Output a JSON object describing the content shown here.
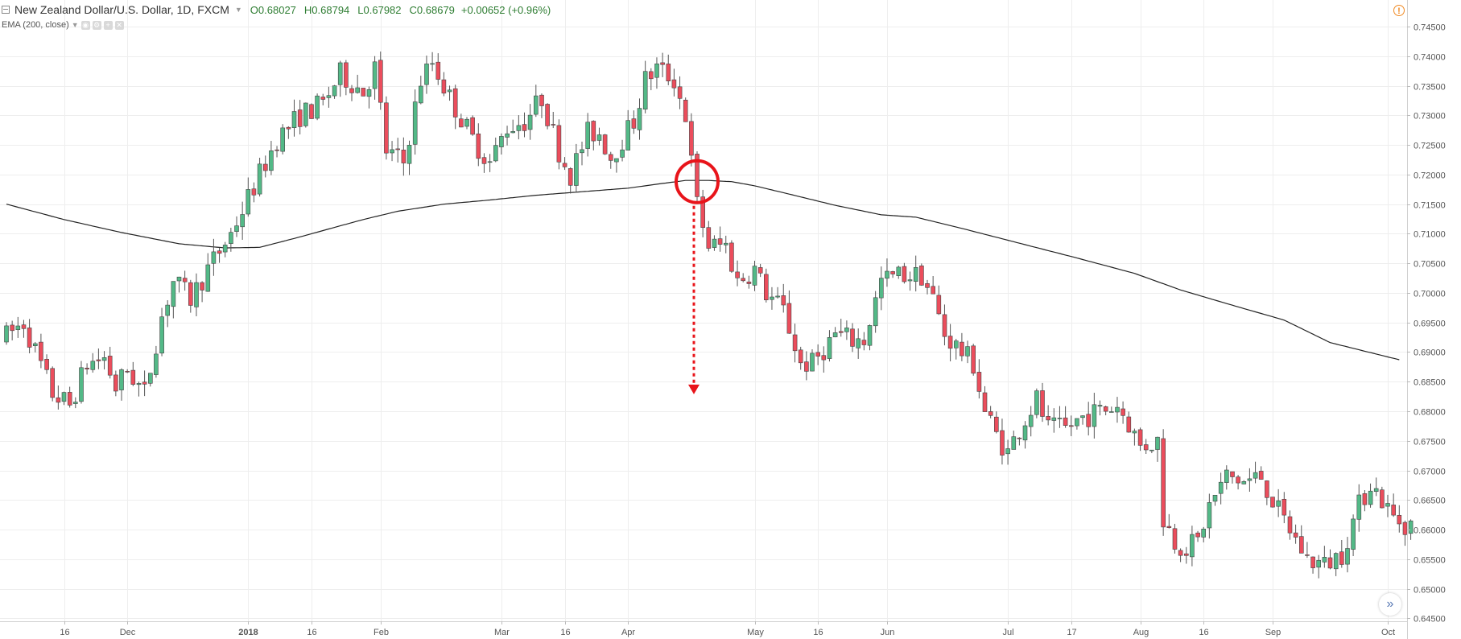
{
  "header": {
    "symbol_title": "New Zealand Dollar/U.S. Dollar, 1D, FXCM",
    "open": "O0.68027",
    "high": "H0.68794",
    "low": "L0.67982",
    "close": "C0.68679",
    "change": "+0.00652 (+0.96%)"
  },
  "study": {
    "label": "EMA (200, close)"
  },
  "icons": {
    "alert": "alert-circle-icon",
    "scroll": "double-chevron-right-icon",
    "collapse": "collapse-minus-icon"
  },
  "colors": {
    "up": "#53b987",
    "down": "#eb4d5c",
    "annotation": "#e8141a",
    "ema": "#222222"
  },
  "chart_data": {
    "type": "candlestick",
    "title": "New Zealand Dollar/U.S. Dollar, 1D, FXCM",
    "ylim": [
      0.6445,
      0.7495
    ],
    "y_ticks": [
      "0.74500",
      "0.74000",
      "0.73500",
      "0.73000",
      "0.72500",
      "0.72000",
      "0.71500",
      "0.71000",
      "0.70500",
      "0.70000",
      "0.69500",
      "0.69000",
      "0.68500",
      "0.68000",
      "0.67500",
      "0.67000",
      "0.66500",
      "0.66000",
      "0.65500",
      "0.65000",
      "0.64500"
    ],
    "x_labels": [
      {
        "label": "16",
        "bar": 10
      },
      {
        "label": "Dec",
        "bar": 21
      },
      {
        "label": "2018",
        "bar": 42
      },
      {
        "label": "16",
        "bar": 53
      },
      {
        "label": "Feb",
        "bar": 65
      },
      {
        "label": "Mar",
        "bar": 86
      },
      {
        "label": "16",
        "bar": 97
      },
      {
        "label": "Apr",
        "bar": 108
      },
      {
        "label": "May",
        "bar": 130
      },
      {
        "label": "16",
        "bar": 141
      },
      {
        "label": "Jun",
        "bar": 153
      },
      {
        "label": "Jul",
        "bar": 174
      },
      {
        "label": "17",
        "bar": 185
      },
      {
        "label": "Aug",
        "bar": 197
      },
      {
        "label": "16",
        "bar": 208
      },
      {
        "label": "Sep",
        "bar": 220
      },
      {
        "label": "Oct",
        "bar": 240
      }
    ],
    "ema_label": "EMA (200, close)",
    "ema_points": [
      {
        "bar": 0,
        "v": 0.715
      },
      {
        "bar": 10,
        "v": 0.7124
      },
      {
        "bar": 20,
        "v": 0.7102
      },
      {
        "bar": 30,
        "v": 0.7083
      },
      {
        "bar": 38,
        "v": 0.7076
      },
      {
        "bar": 44,
        "v": 0.7077
      },
      {
        "bar": 50,
        "v": 0.7092
      },
      {
        "bar": 56,
        "v": 0.7108
      },
      {
        "bar": 62,
        "v": 0.7124
      },
      {
        "bar": 68,
        "v": 0.7138
      },
      {
        "bar": 76,
        "v": 0.715
      },
      {
        "bar": 84,
        "v": 0.7157
      },
      {
        "bar": 92,
        "v": 0.7165
      },
      {
        "bar": 100,
        "v": 0.7171
      },
      {
        "bar": 108,
        "v": 0.7177
      },
      {
        "bar": 114,
        "v": 0.7185
      },
      {
        "bar": 118,
        "v": 0.719
      },
      {
        "bar": 122,
        "v": 0.719
      },
      {
        "bar": 126,
        "v": 0.7188
      },
      {
        "bar": 130,
        "v": 0.7181
      },
      {
        "bar": 136,
        "v": 0.7167
      },
      {
        "bar": 144,
        "v": 0.7148
      },
      {
        "bar": 152,
        "v": 0.7132
      },
      {
        "bar": 158,
        "v": 0.7128
      },
      {
        "bar": 166,
        "v": 0.7109
      },
      {
        "bar": 176,
        "v": 0.7084
      },
      {
        "bar": 186,
        "v": 0.7059
      },
      {
        "bar": 196,
        "v": 0.7033
      },
      {
        "bar": 204,
        "v": 0.7005
      },
      {
        "bar": 212,
        "v": 0.6982
      },
      {
        "bar": 222,
        "v": 0.6954
      },
      {
        "bar": 230,
        "v": 0.6916
      },
      {
        "bar": 242,
        "v": 0.6887
      }
    ],
    "price_path": [
      {
        "bar": 0,
        "v": 0.692
      },
      {
        "bar": 4,
        "v": 0.695
      },
      {
        "bar": 9,
        "v": 0.683
      },
      {
        "bar": 12,
        "v": 0.681
      },
      {
        "bar": 15,
        "v": 0.688
      },
      {
        "bar": 18,
        "v": 0.689
      },
      {
        "bar": 20,
        "v": 0.684
      },
      {
        "bar": 22,
        "v": 0.687
      },
      {
        "bar": 25,
        "v": 0.683
      },
      {
        "bar": 28,
        "v": 0.696
      },
      {
        "bar": 30,
        "v": 0.702
      },
      {
        "bar": 33,
        "v": 0.699
      },
      {
        "bar": 36,
        "v": 0.704
      },
      {
        "bar": 40,
        "v": 0.71
      },
      {
        "bar": 44,
        "v": 0.718
      },
      {
        "bar": 48,
        "v": 0.726
      },
      {
        "bar": 52,
        "v": 0.73
      },
      {
        "bar": 56,
        "v": 0.732
      },
      {
        "bar": 59,
        "v": 0.737
      },
      {
        "bar": 63,
        "v": 0.734
      },
      {
        "bar": 65,
        "v": 0.738
      },
      {
        "bar": 67,
        "v": 0.724
      },
      {
        "bar": 70,
        "v": 0.722
      },
      {
        "bar": 73,
        "v": 0.736
      },
      {
        "bar": 75,
        "v": 0.739
      },
      {
        "bar": 78,
        "v": 0.733
      },
      {
        "bar": 82,
        "v": 0.726
      },
      {
        "bar": 85,
        "v": 0.722
      },
      {
        "bar": 88,
        "v": 0.728
      },
      {
        "bar": 91,
        "v": 0.729
      },
      {
        "bar": 94,
        "v": 0.733
      },
      {
        "bar": 97,
        "v": 0.724
      },
      {
        "bar": 99,
        "v": 0.72
      },
      {
        "bar": 102,
        "v": 0.727
      },
      {
        "bar": 104,
        "v": 0.727
      },
      {
        "bar": 106,
        "v": 0.723
      },
      {
        "bar": 110,
        "v": 0.729
      },
      {
        "bar": 112,
        "v": 0.736
      },
      {
        "bar": 114,
        "v": 0.738
      },
      {
        "bar": 117,
        "v": 0.736
      },
      {
        "bar": 119,
        "v": 0.73
      },
      {
        "bar": 120,
        "v": 0.722
      },
      {
        "bar": 121,
        "v": 0.715
      },
      {
        "bar": 123,
        "v": 0.708
      },
      {
        "bar": 126,
        "v": 0.708
      },
      {
        "bar": 128,
        "v": 0.702
      },
      {
        "bar": 131,
        "v": 0.704
      },
      {
        "bar": 133,
        "v": 0.7
      },
      {
        "bar": 136,
        "v": 0.697
      },
      {
        "bar": 139,
        "v": 0.688
      },
      {
        "bar": 141,
        "v": 0.688
      },
      {
        "bar": 145,
        "v": 0.693
      },
      {
        "bar": 148,
        "v": 0.692
      },
      {
        "bar": 150,
        "v": 0.692
      },
      {
        "bar": 153,
        "v": 0.702
      },
      {
        "bar": 156,
        "v": 0.703
      },
      {
        "bar": 160,
        "v": 0.703
      },
      {
        "bar": 162,
        "v": 0.699
      },
      {
        "bar": 164,
        "v": 0.693
      },
      {
        "bar": 167,
        "v": 0.69
      },
      {
        "bar": 169,
        "v": 0.688
      },
      {
        "bar": 171,
        "v": 0.68
      },
      {
        "bar": 173,
        "v": 0.676
      },
      {
        "bar": 175,
        "v": 0.673
      },
      {
        "bar": 177,
        "v": 0.677
      },
      {
        "bar": 180,
        "v": 0.682
      },
      {
        "bar": 182,
        "v": 0.677
      },
      {
        "bar": 185,
        "v": 0.677
      },
      {
        "bar": 188,
        "v": 0.679
      },
      {
        "bar": 191,
        "v": 0.68
      },
      {
        "bar": 194,
        "v": 0.681
      },
      {
        "bar": 196,
        "v": 0.678
      },
      {
        "bar": 198,
        "v": 0.674
      },
      {
        "bar": 201,
        "v": 0.675
      },
      {
        "bar": 202,
        "v": 0.662
      },
      {
        "bar": 204,
        "v": 0.658
      },
      {
        "bar": 206,
        "v": 0.657
      },
      {
        "bar": 208,
        "v": 0.658
      },
      {
        "bar": 210,
        "v": 0.664
      },
      {
        "bar": 213,
        "v": 0.669
      },
      {
        "bar": 216,
        "v": 0.668
      },
      {
        "bar": 219,
        "v": 0.669
      },
      {
        "bar": 222,
        "v": 0.663
      },
      {
        "bar": 224,
        "v": 0.66
      },
      {
        "bar": 227,
        "v": 0.655
      },
      {
        "bar": 230,
        "v": 0.654
      },
      {
        "bar": 233,
        "v": 0.656
      },
      {
        "bar": 236,
        "v": 0.664
      },
      {
        "bar": 238,
        "v": 0.668
      },
      {
        "bar": 240,
        "v": 0.665
      },
      {
        "bar": 242,
        "v": 0.662
      },
      {
        "bar": 244,
        "v": 0.661
      }
    ],
    "bar_count": 245,
    "annotation": {
      "type": "circle-and-arrow",
      "bar": 120,
      "price": 0.7188,
      "arrow_to": 0.683,
      "meaning": "price crosses below EMA"
    }
  }
}
